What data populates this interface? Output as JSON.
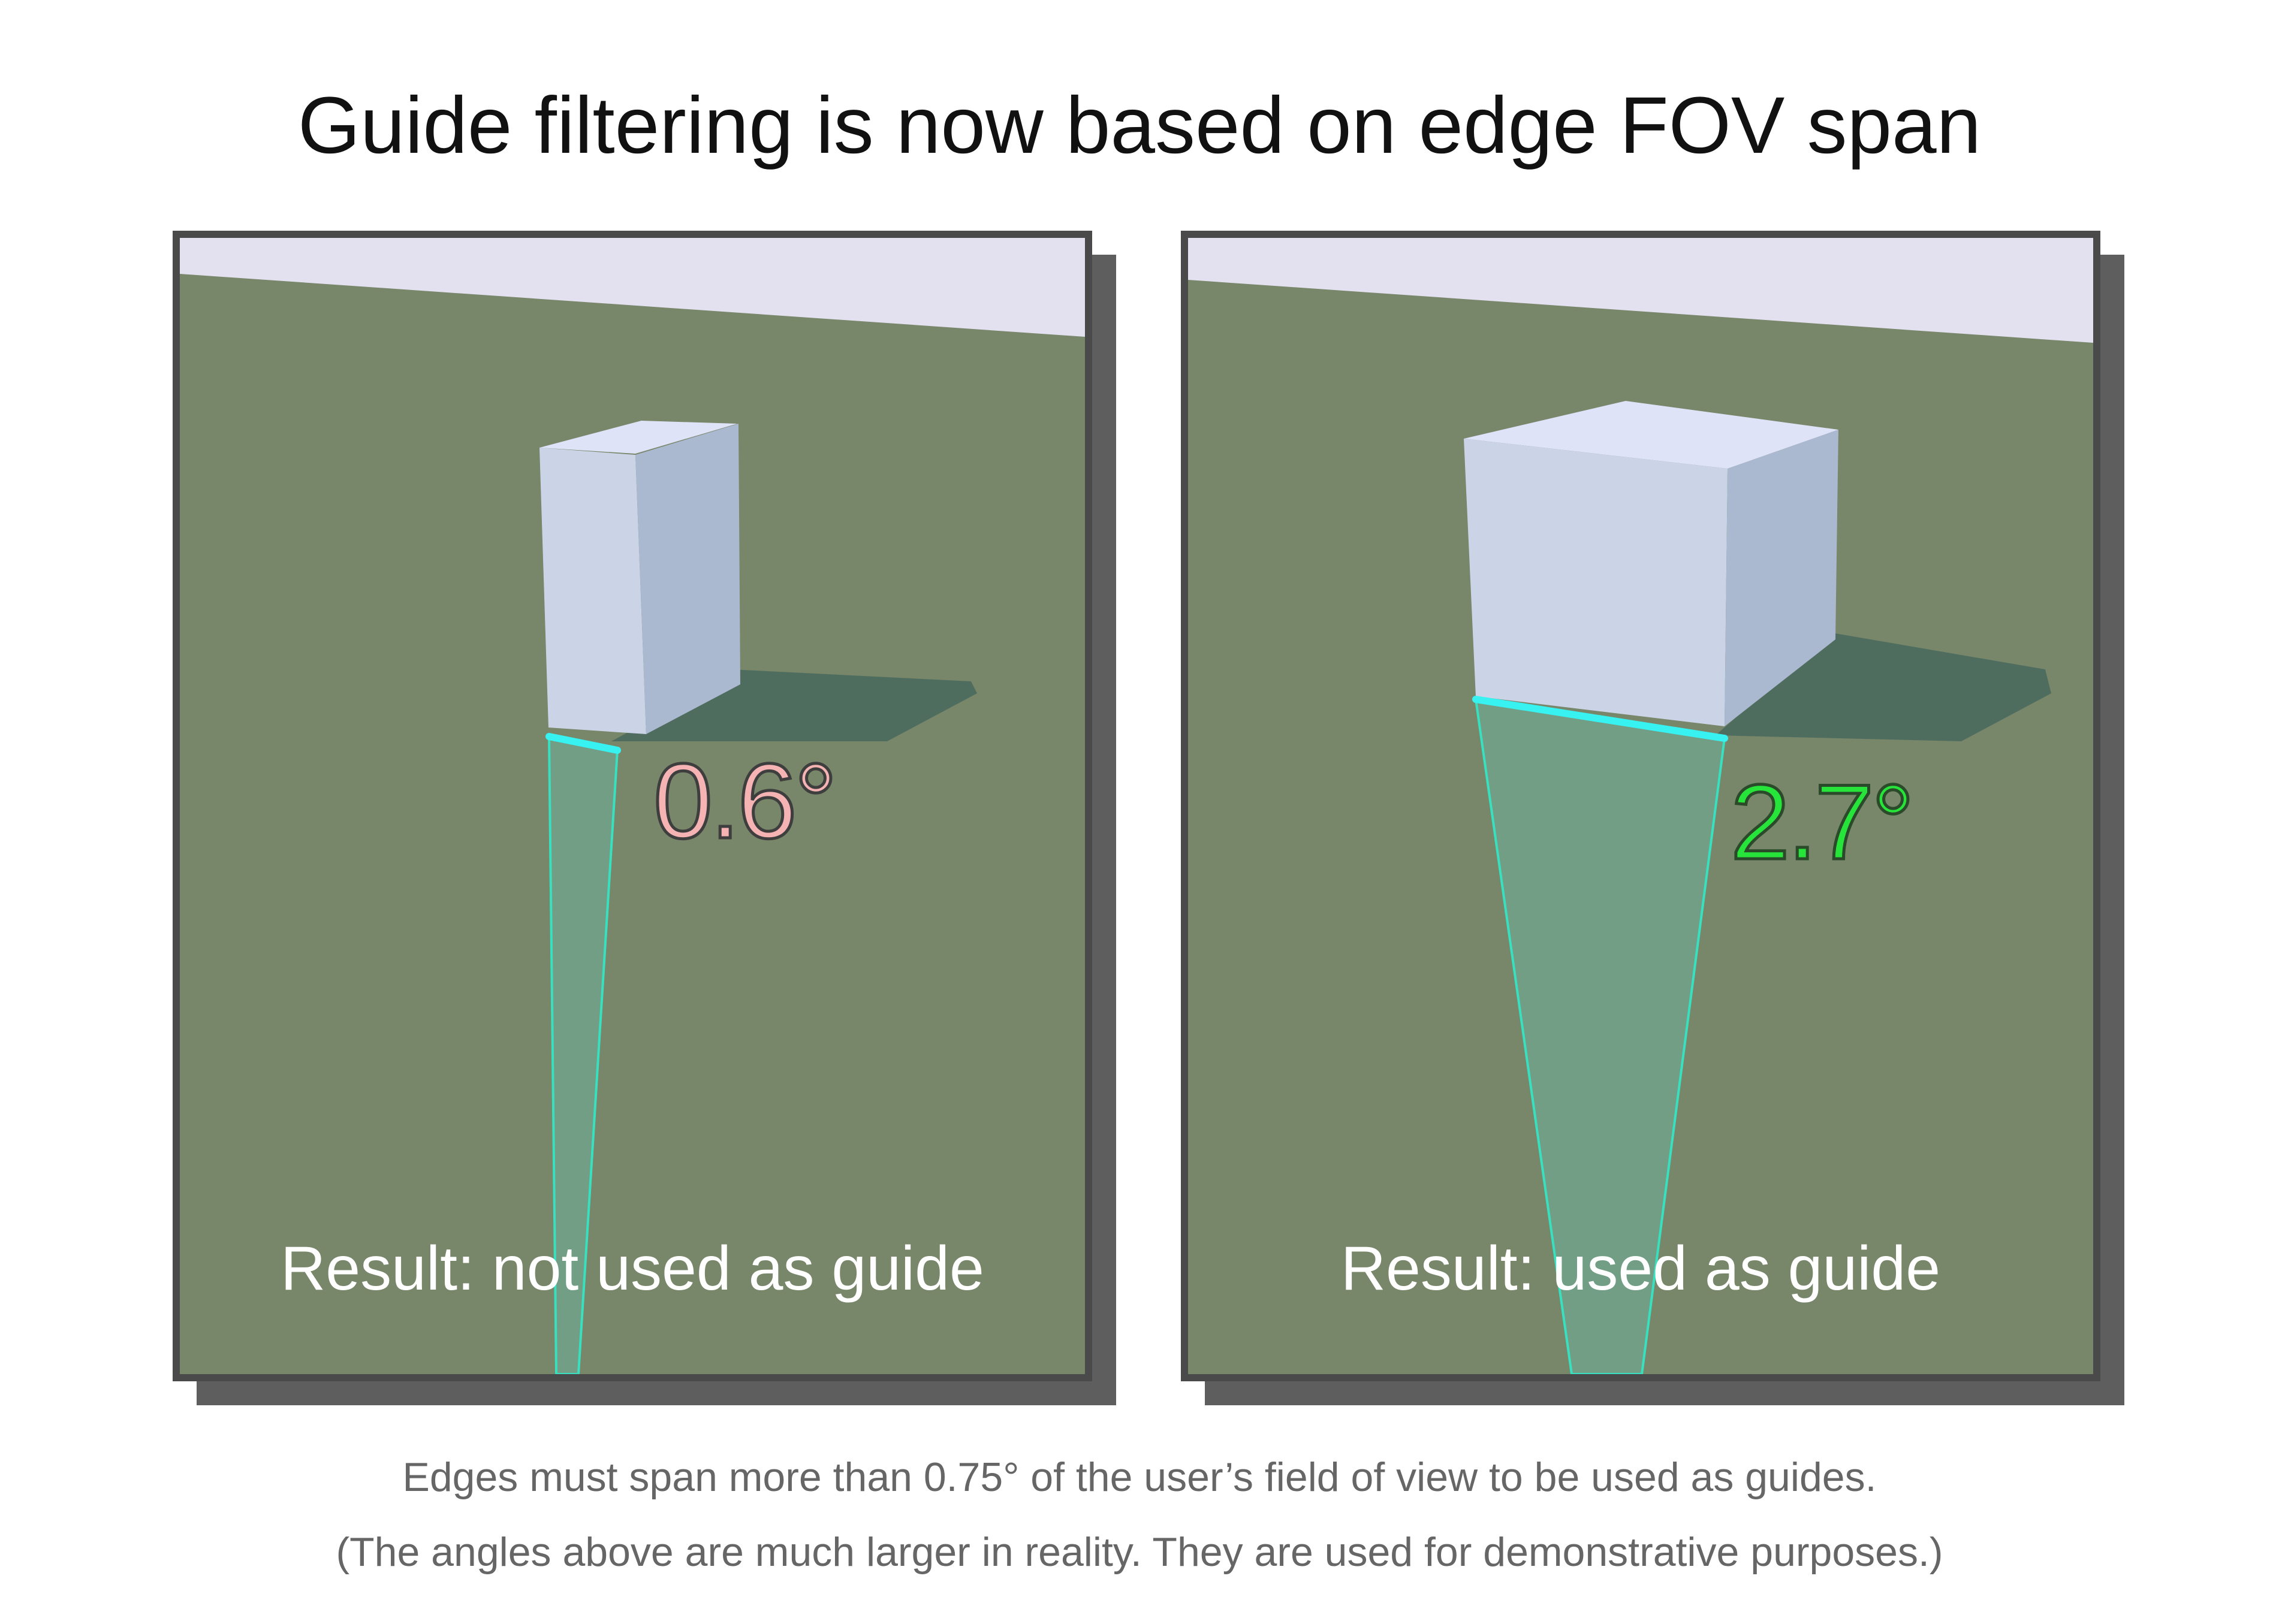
{
  "title": "Guide filtering is now based on edge FOV span",
  "panels": {
    "left": {
      "angle_label": "0.6°",
      "angle_color": "#f6b3b4",
      "result": "Result: not used as guide"
    },
    "right": {
      "angle_label": "2.7°",
      "angle_color": "#27e43a",
      "result": "Result: used as guide"
    }
  },
  "colors": {
    "ground": "#78866a",
    "sky": "#e3e0f0",
    "box_front": "#cbd4e6",
    "box_side": "#aab8d0",
    "box_top": "#dfe3f8",
    "shadow": "#4a6a5e",
    "highlighted_edge": "#37f2f0",
    "fov_cone": "#5fa58a"
  },
  "caption_lines": [
    "Edges must span more than 0.75° of the user’s field of view to be used as guides.",
    "(The angles above are much larger in reality. They are used for demonstrative purposes.)"
  ]
}
